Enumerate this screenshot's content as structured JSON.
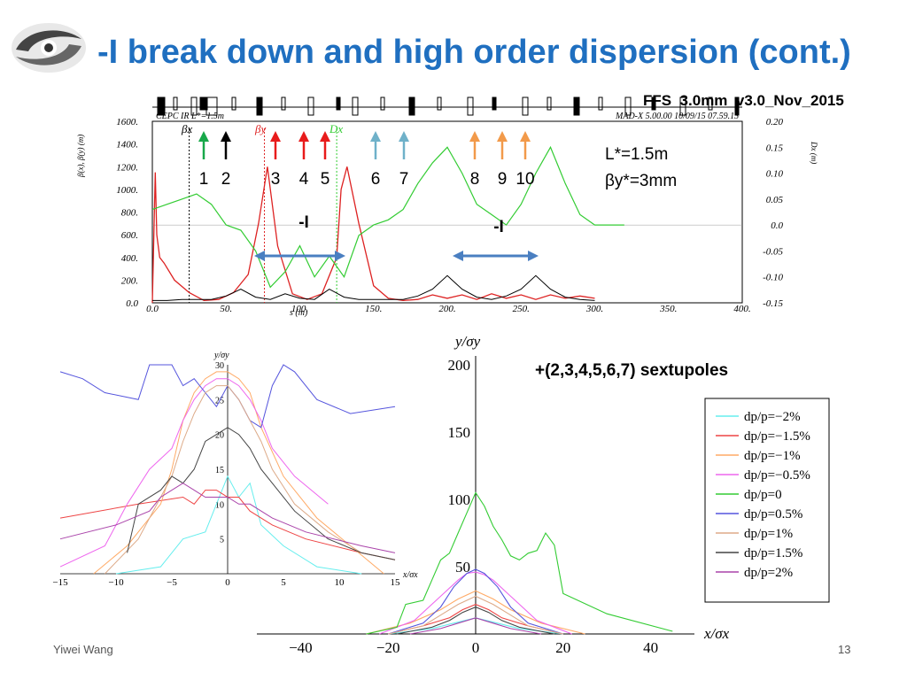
{
  "slide": {
    "title": "-I break down and high order dispersion (cont.)",
    "file_label": "FFS_3.0mm_v3.0_Nov_2015",
    "param_lstar": "L*=1.5m",
    "param_beta": "βy*=3mm",
    "sextupole_label": "+(2,3,4,5,6,7) sextupoles",
    "author": "Yiwei Wang",
    "page_number": "13"
  },
  "colors": {
    "title": "#1f6fc0",
    "arrow_green": "#18a84a",
    "arrow_black": "#000000",
    "arrow_red": "#e81b1b",
    "arrow_teal": "#6fb1c9",
    "arrow_orange": "#f29a4a",
    "double_arrow": "#4a7fc1"
  },
  "chart_data": [
    {
      "type": "line",
      "name": "optics",
      "header_left": "CEPC IR L*=1.5m",
      "header_right": "MAD-X 5.00.00   10/09/15 07.59.13",
      "xlabel": "s (m)",
      "ylabel_left": "β(x), β(y) (m)",
      "ylabel_right": "Dx (m)",
      "legend": [
        "βx",
        "βy",
        "Dx"
      ],
      "xlim": [
        0,
        400
      ],
      "ylim_left": [
        0,
        1600
      ],
      "ylim_right": [
        -0.15,
        0.2
      ],
      "x_ticks": [
        "0.0",
        "50.",
        "100.",
        "150.",
        "200.",
        "250.",
        "300.",
        "350.",
        "400."
      ],
      "y_ticks_left": [
        "0.0",
        "200.",
        "400.",
        "600.",
        "800.",
        "1000.",
        "1200.",
        "1400.",
        "1600."
      ],
      "y_ticks_right": [
        "0.20",
        "0.15",
        "0.10",
        "0.05",
        "0.0",
        "-0.05",
        "-0.10",
        "-0.15"
      ],
      "series": [
        {
          "color": "#d22",
          "x": [
            0,
            2,
            3,
            5,
            8,
            15,
            25,
            35,
            45,
            55,
            65,
            72,
            78,
            85,
            95,
            105,
            115,
            125,
            128,
            132,
            140,
            150,
            160,
            170,
            180,
            190,
            200,
            210,
            220,
            230,
            240,
            250,
            260,
            270,
            280,
            290,
            300
          ],
          "y": [
            0,
            1150,
            600,
            400,
            350,
            200,
            90,
            20,
            30,
            90,
            250,
            700,
            1200,
            500,
            80,
            30,
            80,
            400,
            1000,
            1200,
            700,
            150,
            40,
            20,
            30,
            70,
            40,
            70,
            30,
            80,
            40,
            70,
            30,
            70,
            40,
            60,
            40
          ]
        },
        {
          "color": "#000",
          "x": [
            0,
            10,
            20,
            30,
            40,
            50,
            60,
            70,
            80,
            90,
            100,
            110,
            120,
            130,
            140,
            150,
            160,
            170,
            180,
            190,
            200,
            210,
            220,
            230,
            240,
            250,
            260,
            270,
            280,
            290,
            300
          ],
          "y": [
            20,
            20,
            30,
            30,
            30,
            60,
            120,
            50,
            30,
            80,
            40,
            30,
            120,
            50,
            30,
            30,
            30,
            30,
            60,
            120,
            240,
            120,
            50,
            30,
            60,
            120,
            240,
            120,
            50,
            30,
            20
          ]
        },
        {
          "color": "#3c3",
          "x": [
            0,
            10,
            20,
            30,
            40,
            50,
            60,
            70,
            80,
            90,
            100,
            110,
            120,
            130,
            140,
            150,
            160,
            170,
            180,
            190,
            200,
            210,
            220,
            230,
            240,
            250,
            260,
            270,
            280,
            290,
            300,
            310,
            320
          ],
          "y": [
            0.03,
            0.04,
            0.05,
            0.06,
            0.04,
            0.0,
            -0.01,
            -0.05,
            -0.12,
            -0.09,
            -0.04,
            -0.1,
            -0.06,
            -0.1,
            -0.02,
            0.0,
            0.01,
            0.03,
            0.08,
            0.12,
            0.15,
            0.1,
            0.04,
            0.02,
            0.0,
            0.04,
            0.1,
            0.15,
            0.08,
            0.02,
            0.0,
            0.0,
            0.0
          ]
        }
      ]
    },
    {
      "type": "line",
      "name": "phase-space-left",
      "xlabel": "x/σx",
      "ylabel": "y/σy",
      "xlim": [
        -15,
        15
      ],
      "ylim": [
        0,
        30
      ],
      "x_ticks": [
        "-15",
        "-10",
        "-5",
        "0",
        "5",
        "10",
        "15"
      ],
      "y_ticks": [
        "5",
        "10",
        "15",
        "20",
        "25",
        "30"
      ],
      "series": [
        {
          "color": "#6ee",
          "x": [
            -10,
            -6,
            -4,
            -2,
            -1,
            0,
            1,
            2,
            3,
            5,
            8,
            12
          ],
          "y": [
            0,
            1,
            5,
            6,
            10,
            14,
            11,
            13,
            7,
            4,
            1,
            0
          ]
        },
        {
          "color": "#e44",
          "x": [
            -15,
            -8,
            -4,
            -3,
            -2,
            -1,
            0,
            1,
            2,
            4,
            7,
            12,
            15
          ],
          "y": [
            8,
            10,
            11,
            10,
            12,
            12,
            11,
            11,
            9,
            7,
            5,
            3,
            2
          ]
        },
        {
          "color": "#fa6",
          "x": [
            -12,
            -9,
            -6,
            -5,
            -4,
            -3,
            -2,
            -1,
            0,
            1,
            2,
            3,
            5,
            8,
            11,
            14
          ],
          "y": [
            0,
            4,
            10,
            15,
            22,
            26,
            28,
            29,
            29,
            28,
            26,
            21,
            14,
            8,
            4,
            0
          ]
        },
        {
          "color": "#e6e",
          "x": [
            -15,
            -11,
            -9,
            -7,
            -5,
            -4,
            -3,
            -2,
            -1,
            0,
            1,
            2,
            3,
            4,
            6,
            9
          ],
          "y": [
            1,
            4,
            10,
            15,
            18,
            22,
            25,
            27,
            28,
            28,
            27,
            25,
            22,
            18,
            14,
            10
          ]
        },
        {
          "color": "#55d",
          "x": [
            -15,
            -13,
            -11,
            -8,
            -7,
            -5,
            -4,
            -3,
            -2,
            -1,
            0,
            1,
            2,
            3,
            4,
            5,
            6,
            8,
            11,
            15
          ],
          "y": [
            29,
            28,
            26,
            25,
            30,
            30,
            27,
            28,
            26,
            24,
            27,
            25,
            22,
            21,
            27,
            30,
            29,
            25,
            23,
            24
          ]
        },
        {
          "color": "#da8",
          "x": [
            -11,
            -8,
            -6,
            -5,
            -4,
            -3,
            -2,
            -1,
            0,
            1,
            2,
            3,
            4,
            6,
            9,
            12,
            15
          ],
          "y": [
            0,
            5,
            11,
            14,
            19,
            23,
            26,
            27,
            27,
            25,
            22,
            19,
            15,
            10,
            6,
            3,
            2
          ]
        },
        {
          "color": "#444",
          "x": [
            -9,
            -8,
            -6,
            -5,
            -4,
            -3,
            -2,
            -1,
            0,
            1,
            2,
            3,
            4,
            6,
            9,
            12,
            15
          ],
          "y": [
            3,
            10,
            12,
            14,
            13,
            15,
            19,
            20,
            21,
            20,
            18,
            15,
            13,
            9,
            5,
            3,
            2
          ]
        },
        {
          "color": "#a4a",
          "x": [
            -15,
            -10,
            -7,
            -6,
            -5,
            -4,
            -3,
            -2,
            -1,
            0,
            1,
            2,
            4,
            7,
            12,
            15
          ],
          "y": [
            5,
            7,
            9,
            11,
            12,
            13,
            12,
            11,
            11,
            11,
            10,
            10,
            8,
            6,
            4,
            3
          ]
        }
      ]
    },
    {
      "type": "line",
      "name": "phase-space-right",
      "xlabel": "x/σx",
      "ylabel": "y/σy",
      "xlim": [
        -50,
        50
      ],
      "ylim": [
        0,
        200
      ],
      "x_ticks": [
        "-40",
        "-20",
        "0",
        "20",
        "40"
      ],
      "y_ticks": [
        "50",
        "100",
        "150",
        "200"
      ],
      "legend": [
        "dp/p=−2%",
        "dp/p=−1.5%",
        "dp/p=−1%",
        "dp/p=−0.5%",
        "dp/p=0",
        "dp/p=0.5%",
        "dp/p=1%",
        "dp/p=1.5%",
        "dp/p=2%"
      ],
      "series": [
        {
          "color": "#6ee",
          "x": [
            -20,
            -10,
            -5,
            0,
            5,
            10,
            20
          ],
          "y": [
            0,
            4,
            8,
            12,
            8,
            4,
            0
          ]
        },
        {
          "color": "#e44",
          "x": [
            -20,
            -12,
            -6,
            -3,
            0,
            3,
            6,
            12,
            20
          ],
          "y": [
            0,
            6,
            12,
            18,
            22,
            18,
            12,
            6,
            0
          ]
        },
        {
          "color": "#fa6",
          "x": [
            -25,
            -15,
            -8,
            -4,
            0,
            4,
            8,
            15,
            25
          ],
          "y": [
            0,
            8,
            18,
            26,
            32,
            26,
            18,
            8,
            0
          ]
        },
        {
          "color": "#e6e",
          "x": [
            -22,
            -14,
            -8,
            -4,
            -2,
            0,
            2,
            4,
            8,
            14,
            22
          ],
          "y": [
            0,
            10,
            28,
            40,
            45,
            46,
            44,
            40,
            28,
            10,
            0
          ]
        },
        {
          "color": "#3c3",
          "x": [
            -25,
            -18,
            -16,
            -12,
            -10,
            -8,
            -6,
            -4,
            -2,
            0,
            2,
            4,
            6,
            8,
            10,
            12,
            14,
            16,
            18,
            20,
            30,
            45
          ],
          "y": [
            0,
            5,
            22,
            25,
            40,
            55,
            60,
            75,
            90,
            105,
            95,
            80,
            70,
            58,
            55,
            60,
            62,
            75,
            66,
            30,
            15,
            2
          ]
        },
        {
          "color": "#55d",
          "x": [
            -20,
            -12,
            -8,
            -5,
            -2,
            0,
            2,
            5,
            8,
            12,
            20
          ],
          "y": [
            0,
            8,
            20,
            35,
            45,
            48,
            45,
            35,
            20,
            8,
            0
          ]
        },
        {
          "color": "#da8",
          "x": [
            -20,
            -12,
            -8,
            -4,
            0,
            4,
            8,
            12,
            20
          ],
          "y": [
            0,
            6,
            14,
            22,
            28,
            22,
            14,
            6,
            0
          ]
        },
        {
          "color": "#444",
          "x": [
            -18,
            -10,
            -6,
            -3,
            0,
            3,
            6,
            10,
            18
          ],
          "y": [
            0,
            5,
            10,
            16,
            20,
            16,
            10,
            5,
            0
          ]
        },
        {
          "color": "#a4a",
          "x": [
            -15,
            -8,
            -4,
            0,
            4,
            8,
            15
          ],
          "y": [
            0,
            4,
            8,
            12,
            8,
            4,
            0
          ]
        }
      ]
    }
  ]
}
